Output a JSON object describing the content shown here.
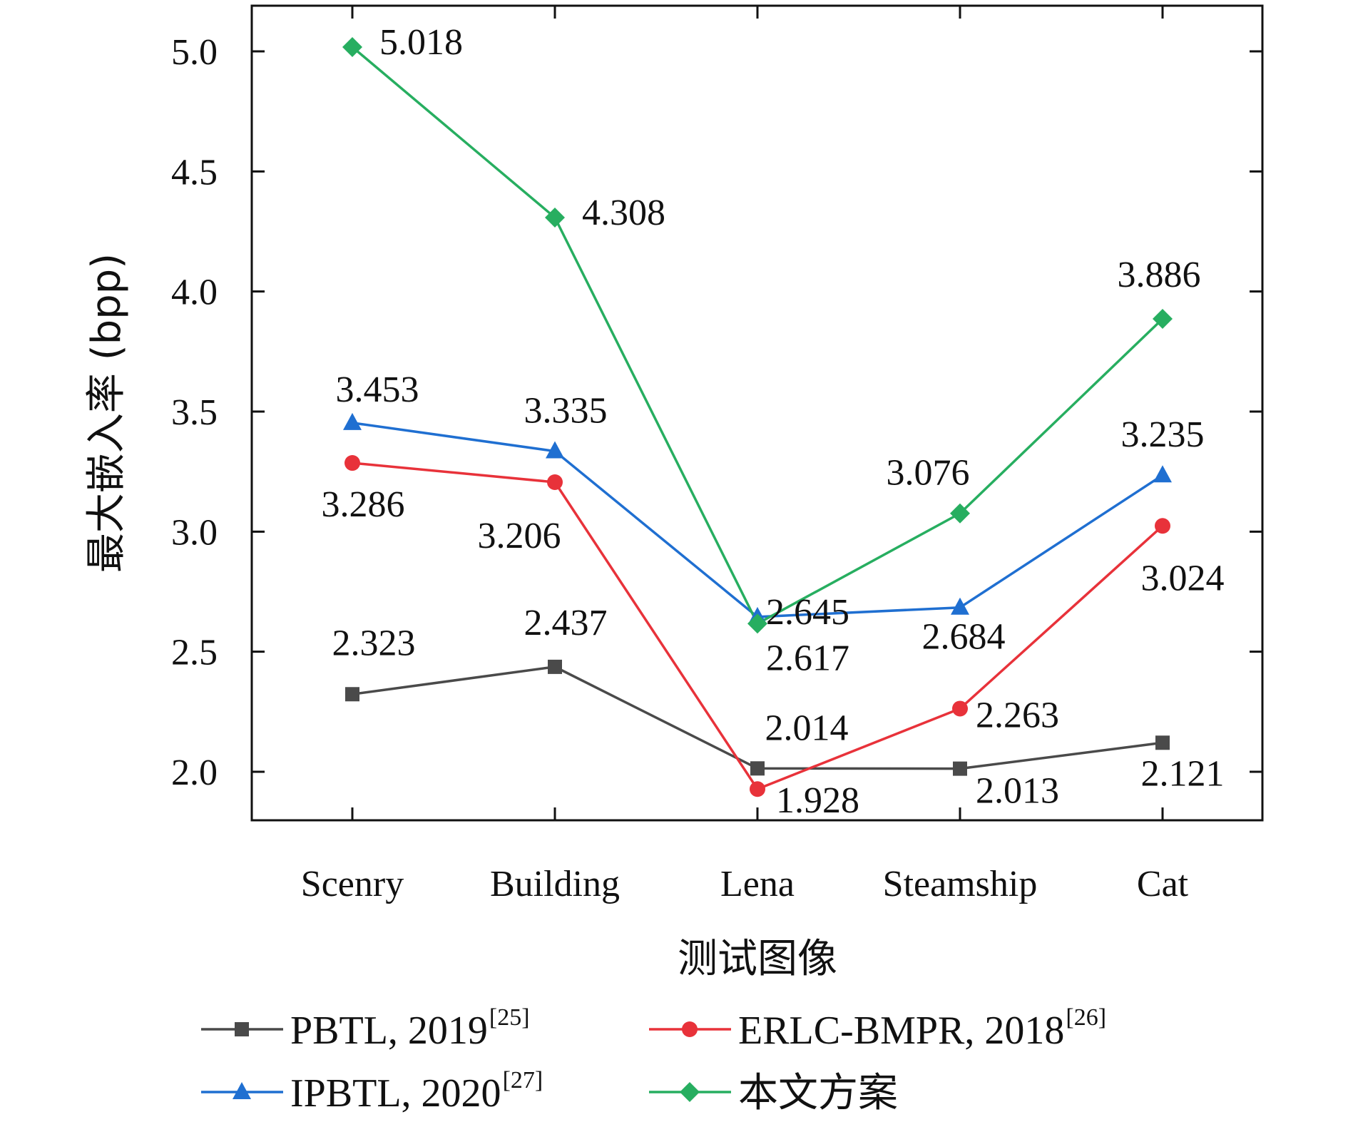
{
  "chart_data": {
    "type": "line",
    "categories": [
      "Scenry",
      "Building",
      "Lena",
      "Steamship",
      "Cat"
    ],
    "xlabel": "测试图像",
    "ylabel": "最大嵌入率 (bpp)",
    "ylim": [
      1.8,
      5.2
    ],
    "yticks": [
      2.0,
      2.5,
      3.0,
      3.5,
      4.0,
      4.5,
      5.0
    ],
    "ytick_labels": [
      "2.0",
      "2.5",
      "3.0",
      "3.5",
      "4.0",
      "4.5",
      "5.0"
    ],
    "grid": false,
    "legend_position": "bottom",
    "series": [
      {
        "name": "PBTL, 2019",
        "ref": "[25]",
        "color": "#4a4a4a",
        "marker": "square",
        "values": [
          2.323,
          2.437,
          2.014,
          2.013,
          2.121
        ],
        "labels": [
          "2.323",
          "2.437",
          "2.014",
          "2.013",
          "2.121"
        ]
      },
      {
        "name": "ERLC-BMPR, 2018",
        "ref": "[26]",
        "color": "#e8323a",
        "marker": "circle",
        "values": [
          3.286,
          3.206,
          1.928,
          2.263,
          3.024
        ],
        "labels": [
          "3.286",
          "3.206",
          "1.928",
          "2.263",
          "3.024"
        ]
      },
      {
        "name": "IPBTL, 2020",
        "ref": "[27]",
        "color": "#1f6fd1",
        "marker": "triangle",
        "values": [
          3.453,
          3.335,
          2.645,
          2.684,
          3.235
        ],
        "labels": [
          "3.453",
          "3.335",
          "2.645",
          "2.684",
          "3.235"
        ]
      },
      {
        "name": "本文方案",
        "ref": "",
        "color": "#27ae60",
        "marker": "diamond",
        "values": [
          5.018,
          4.308,
          2.617,
          3.076,
          3.886
        ],
        "labels": [
          "5.018",
          "4.308",
          "2.617",
          "3.076",
          "3.886"
        ]
      }
    ]
  }
}
